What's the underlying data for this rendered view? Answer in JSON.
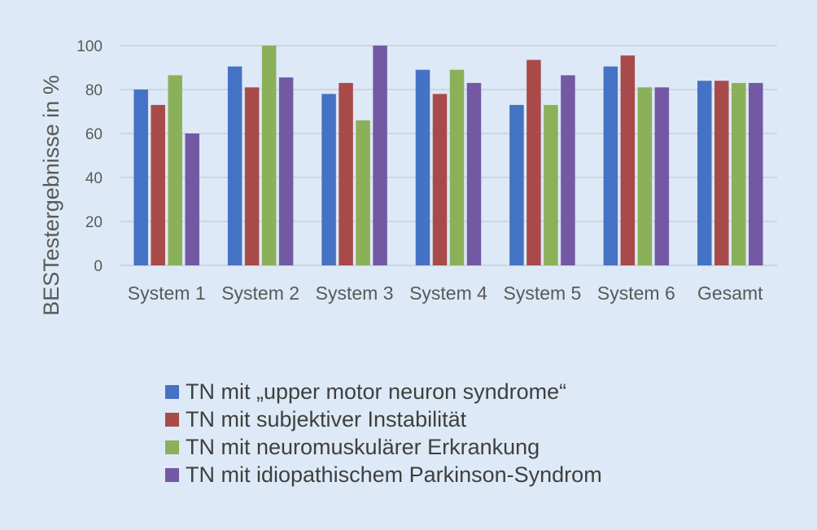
{
  "chart_data": {
    "type": "bar",
    "ylabel": "BESTestergebnisse in %",
    "xlabel": "",
    "ylim": [
      0,
      100
    ],
    "yticks": [
      0,
      20,
      40,
      60,
      80,
      100
    ],
    "grid": true,
    "legend_position": "bottom",
    "categories": [
      "System 1",
      "System 2",
      "System 3",
      "System 4",
      "System 5",
      "System 6",
      "Gesamt"
    ],
    "series": [
      {
        "name": "TN mit „upper motor neuron syndrome“",
        "color": "#4472c4",
        "values": [
          80,
          90.5,
          78,
          89,
          73,
          90.5,
          84
        ]
      },
      {
        "name": "TN mit subjektiver Instabilität",
        "color": "#a94a4a",
        "values": [
          73,
          81,
          83,
          78,
          93.5,
          95.5,
          84
        ]
      },
      {
        "name": "TN mit neuromuskulärer Erkrankung",
        "color": "#8bb05a",
        "values": [
          86.5,
          100,
          66,
          89,
          73,
          81,
          83
        ]
      },
      {
        "name": "TN mit idiopathischem Parkinson-Syndrom",
        "color": "#7359a3",
        "values": [
          60,
          85.5,
          100,
          83,
          86.5,
          81,
          83
        ]
      }
    ]
  }
}
